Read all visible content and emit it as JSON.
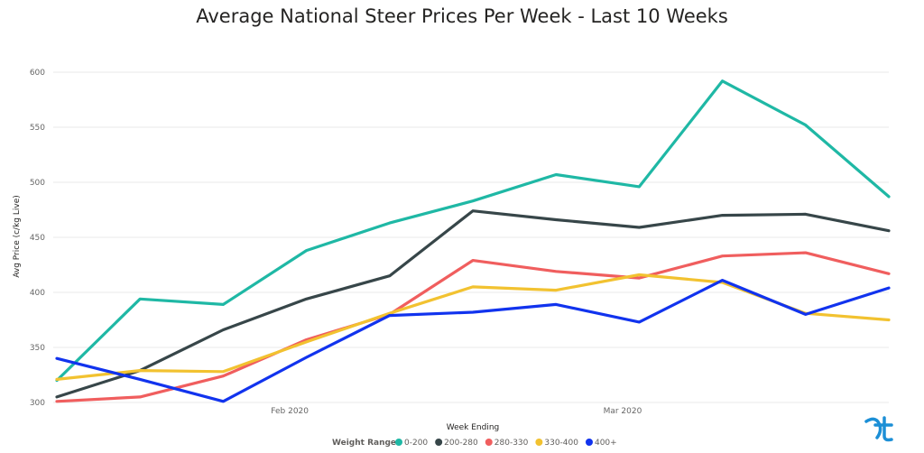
{
  "chart_data": {
    "type": "line",
    "title": "Average National Steer Prices Per Week - Last 10 Weeks",
    "xlabel": "Week Ending",
    "ylabel": "Avg Price (c/kg Live)",
    "ylim": [
      300,
      600
    ],
    "yticks": [
      "300",
      "350",
      "400",
      "450",
      "500",
      "550",
      "600"
    ],
    "xticks": [
      {
        "label": "Feb 2020",
        "index": 2.8
      },
      {
        "label": "Mar 2020",
        "index": 6.8
      }
    ],
    "grid": true,
    "legend_title": "Weight Range",
    "legend_position": "bottom-center",
    "series": [
      {
        "name": "0-200",
        "color": "#1fb8a5",
        "values": [
          320,
          394,
          389,
          438,
          463,
          483,
          507,
          496,
          592,
          552,
          487
        ]
      },
      {
        "name": "200-280",
        "color": "#374649",
        "values": [
          305,
          329,
          366,
          394,
          415,
          474,
          466,
          459,
          470,
          471,
          456
        ]
      },
      {
        "name": "280-330",
        "color": "#f05e5e",
        "values": [
          301,
          305,
          324,
          357,
          380,
          429,
          419,
          413,
          433,
          436,
          417
        ]
      },
      {
        "name": "330-400",
        "color": "#f2c230",
        "values": [
          321,
          329,
          328,
          355,
          381,
          405,
          402,
          416,
          409,
          381,
          375
        ]
      },
      {
        "name": "400+",
        "color": "#1133ee",
        "values": [
          340,
          321,
          301,
          341,
          379,
          382,
          389,
          373,
          411,
          380,
          404
        ]
      }
    ]
  },
  "watermark": {
    "icon": "brand-logo-icon",
    "color": "#1c8fd6"
  }
}
